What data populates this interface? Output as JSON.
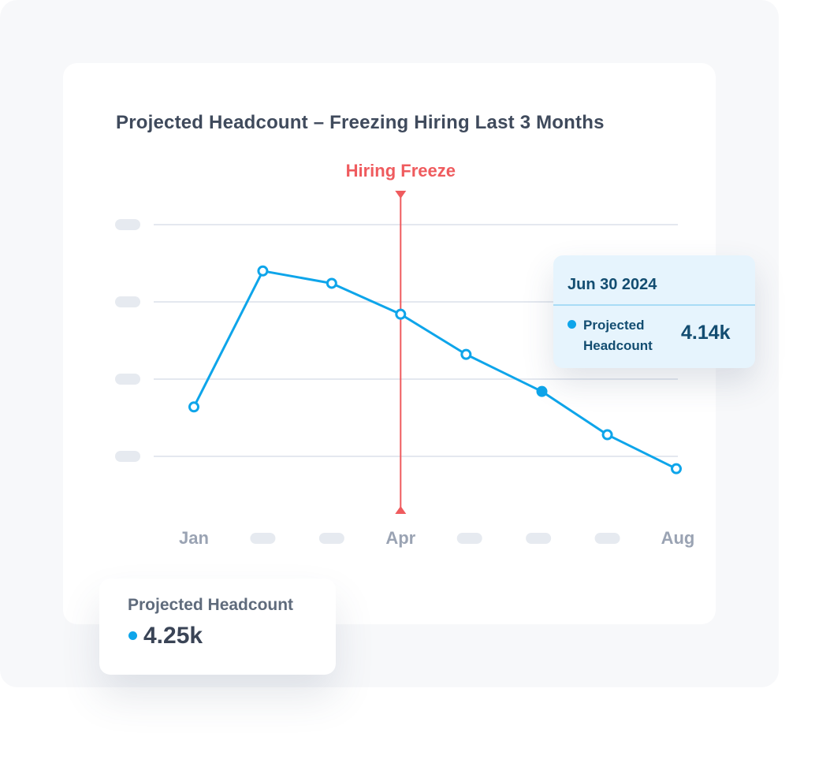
{
  "colors": {
    "line": "#0ea5ea",
    "freeze": "#ef5b5e",
    "grid": "#e4e8ef",
    "placeholder": "#e6eaf0",
    "tick_text": "#9aa3b3"
  },
  "chart_data": {
    "type": "line",
    "title": "Projected Headcount – Freezing Hiring Last 3 Months",
    "xlabel": "",
    "ylabel": "",
    "x_tick_labels": [
      "Jan",
      "",
      "",
      "Apr",
      "",
      "",
      "",
      "Aug"
    ],
    "y_tick_labels": [
      "",
      "",
      "",
      ""
    ],
    "grid": true,
    "series": [
      {
        "name": "Projected Headcount",
        "points": [
          {
            "x": 0.0,
            "y": 0.32
          },
          {
            "x": 1.0,
            "y": 1.2
          },
          {
            "x": 2.0,
            "y": 1.12
          },
          {
            "x": 3.0,
            "y": 0.92
          },
          {
            "x": 3.95,
            "y": 0.66
          },
          {
            "x": 5.05,
            "y": 0.42,
            "highlighted": true
          },
          {
            "x": 6.0,
            "y": 0.14
          },
          {
            "x": 7.0,
            "y": -0.08
          }
        ]
      }
    ],
    "annotations": [
      {
        "type": "vline",
        "x": 3.0,
        "label": "Hiring Freeze"
      }
    ],
    "ylim": [
      0,
      1.5
    ],
    "xlim": [
      0,
      7
    ]
  },
  "tooltip": {
    "date": "Jun 30 2024",
    "series_label": "Projected Headcount",
    "value": "4.14k"
  },
  "summary": {
    "label": "Projected Headcount",
    "value": "4.25k"
  }
}
